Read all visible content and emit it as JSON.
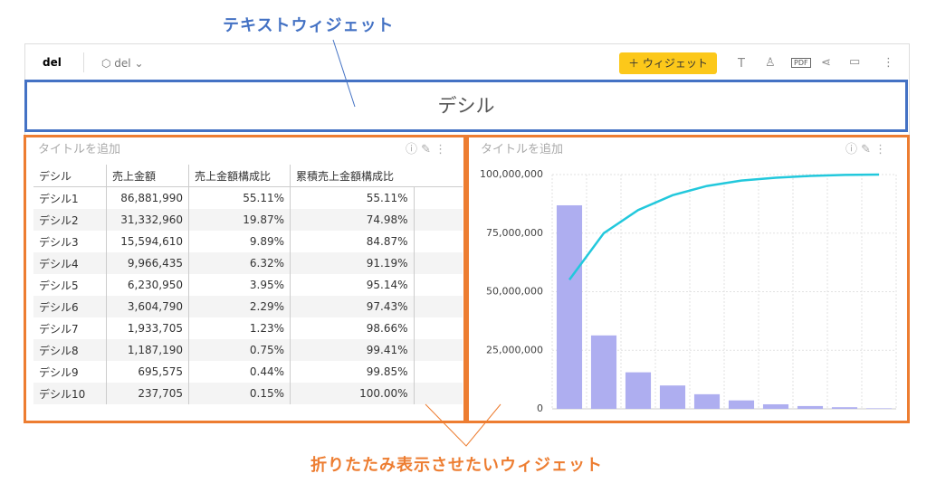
{
  "annotations": {
    "top": "テキストウィジェット",
    "bottom": "折りたたみ表示させたいウィジェット"
  },
  "header": {
    "title": "del",
    "dashboard": "del",
    "add_button": "＋ ウィジェット",
    "pdf": "PDF"
  },
  "text_widget": {
    "text": "デシル"
  },
  "table_widget": {
    "title": "タイトルを追加",
    "table": {
      "columns": [
        "デシル",
        "売上金額",
        "売上金額構成比",
        "累積売上金額構成比"
      ],
      "rows": [
        [
          "デシル1",
          "86,881,990",
          "55.11%",
          "55.11%"
        ],
        [
          "デシル2",
          "31,332,960",
          "19.87%",
          "74.98%"
        ],
        [
          "デシル3",
          "15,594,610",
          "9.89%",
          "84.87%"
        ],
        [
          "デシル4",
          "9,966,435",
          "6.32%",
          "91.19%"
        ],
        [
          "デシル5",
          "6,230,950",
          "3.95%",
          "95.14%"
        ],
        [
          "デシル6",
          "3,604,790",
          "2.29%",
          "97.43%"
        ],
        [
          "デシル7",
          "1,933,705",
          "1.23%",
          "98.66%"
        ],
        [
          "デシル8",
          "1,187,190",
          "0.75%",
          "99.41%"
        ],
        [
          "デシル9",
          "695,575",
          "0.44%",
          "99.85%"
        ],
        [
          "デシル10",
          "237,705",
          "0.15%",
          "100.00%"
        ]
      ]
    }
  },
  "chart_widget": {
    "title": "タイトルを追加"
  },
  "chart_data": {
    "type": "pareto",
    "categories": [
      null,
      null,
      null,
      null,
      null,
      null,
      null,
      null,
      null,
      null
    ],
    "series": [
      {
        "type": "bar",
        "color": "#aeaef0",
        "values": [
          86881990,
          31332960,
          15594610,
          9966435,
          6230950,
          3604790,
          1933705,
          1187190,
          695575,
          237705
        ]
      },
      {
        "type": "line",
        "axis": "y2",
        "color": "#22c8dc",
        "values": [
          55.11,
          74.98,
          84.87,
          91.19,
          95.14,
          97.43,
          98.66,
          99.41,
          99.85,
          100
        ]
      }
    ],
    "ylim": [
      0,
      100000000
    ],
    "yticks": [
      0,
      {
        "value": 25000000,
        "label": "25,000,000"
      },
      {
        "value": 50000000,
        "label": "50,000,000"
      },
      {
        "value": 75000000,
        "label": "75,000,000"
      },
      {
        "value": 100000000,
        "label": "100,000,000"
      }
    ],
    "y2lim": [
      0,
      100
    ],
    "grid": true
  }
}
